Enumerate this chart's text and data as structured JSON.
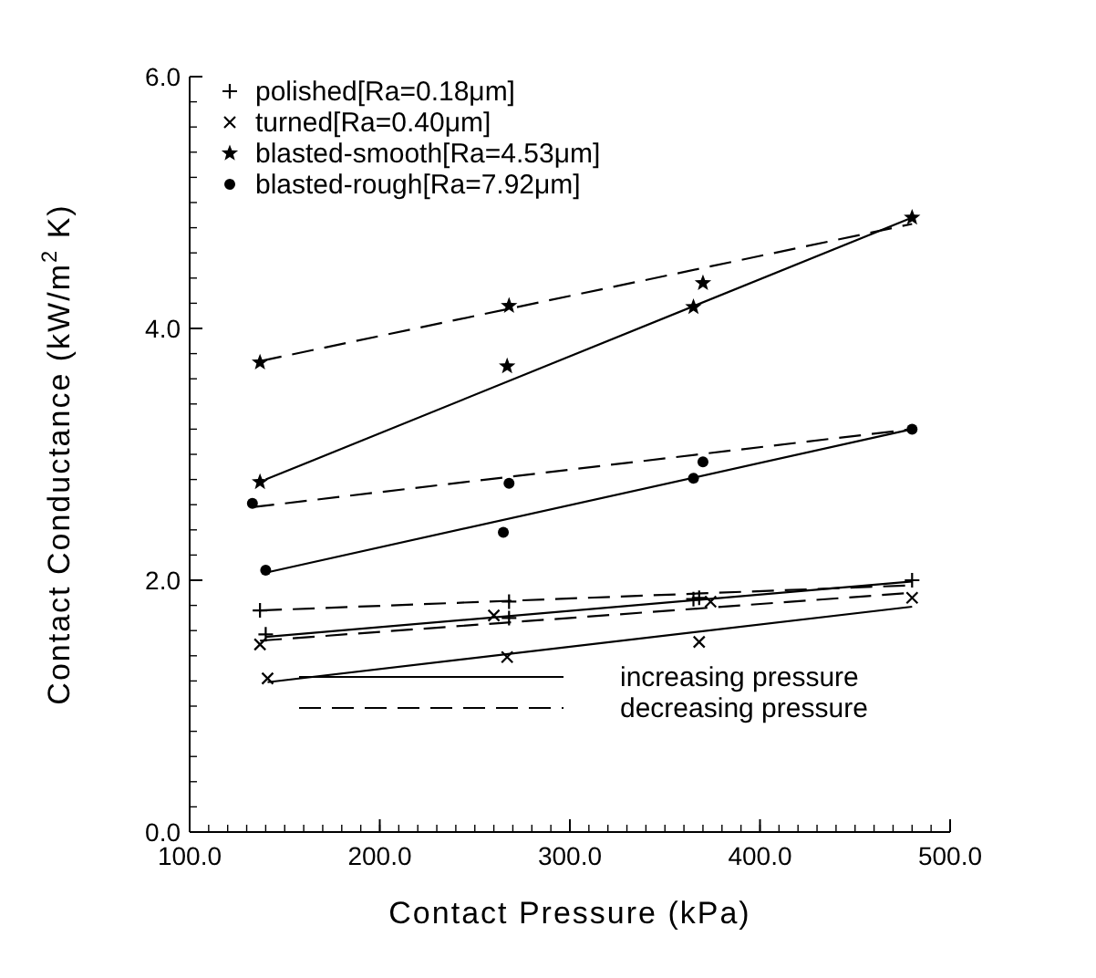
{
  "chart_data": {
    "type": "scatter",
    "xlabel": "Contact Pressure (kPa)",
    "ylabel": "Contact Conductance (kW/m$^{2}$ K)",
    "xlim": [
      100,
      500
    ],
    "ylim": [
      0,
      6
    ],
    "xticks": [
      {
        "value": 100,
        "label": "100.0"
      },
      {
        "value": 200,
        "label": "200.0"
      },
      {
        "value": 300,
        "label": "300.0"
      },
      {
        "value": 400,
        "label": "400.0"
      },
      {
        "value": 500,
        "label": "500.0"
      }
    ],
    "yticks": [
      {
        "value": 0,
        "label": "0.0"
      },
      {
        "value": 2,
        "label": "2.0"
      },
      {
        "value": 4,
        "label": "4.0"
      },
      {
        "value": 6,
        "label": "6.0"
      }
    ],
    "grid": false,
    "legend": "top left",
    "annotations": [
      "increasing pressure",
      "decreasing pressure"
    ],
    "series": [
      {
        "name": "polished[Ra=0.18μm]",
        "color": "#000000",
        "marker": "plus",
        "x": [
          137,
          268,
          368,
          480,
          140,
          268,
          365
        ],
        "values": [
          1.76,
          1.83,
          1.86,
          2.0,
          1.57,
          1.7,
          1.85
        ]
      },
      {
        "name": "turned[Ra=0.40μm]",
        "color": "#000000",
        "marker": "cross",
        "x": [
          141,
          267,
          368,
          480,
          137,
          260,
          374
        ],
        "values": [
          1.22,
          1.39,
          1.51,
          1.86,
          1.49,
          1.72,
          1.83
        ]
      },
      {
        "name": "blasted-smooth[Ra=4.53μm]",
        "color": "#000000",
        "marker": "star",
        "x": [
          137,
          267,
          365,
          480,
          137,
          268,
          370
        ],
        "values": [
          2.78,
          3.7,
          4.17,
          4.88,
          3.73,
          4.18,
          4.36
        ]
      },
      {
        "name": "blasted-rough[Ra=7.92μm]",
        "color": "#000000",
        "marker": "circle",
        "x": [
          140,
          265,
          365,
          480,
          133,
          268,
          370
        ],
        "values": [
          2.08,
          2.38,
          2.81,
          3.2,
          2.61,
          2.77,
          2.94
        ]
      },
      {
        "type": "line",
        "color": "#000000",
        "marker": "none",
        "line_style": "solid",
        "x": [
          140,
          480
        ],
        "values": [
          1.55,
          1.99
        ]
      },
      {
        "type": "line",
        "color": "#000000",
        "marker": "none",
        "line_style": "dashed",
        "x": [
          137,
          480
        ],
        "values": [
          1.76,
          1.96
        ]
      },
      {
        "type": "line",
        "color": "#000000",
        "marker": "none",
        "line_style": "solid",
        "x": [
          141,
          480
        ],
        "values": [
          1.19,
          1.79
        ]
      },
      {
        "type": "line",
        "color": "#000000",
        "marker": "none",
        "line_style": "dashed",
        "x": [
          137,
          480
        ],
        "values": [
          1.52,
          1.9
        ]
      },
      {
        "type": "line",
        "color": "#000000",
        "marker": "none",
        "line_style": "solid",
        "x": [
          140,
          480
        ],
        "values": [
          2.8,
          4.88
        ]
      },
      {
        "type": "line",
        "color": "#000000",
        "marker": "none",
        "line_style": "dashed",
        "x": [
          137,
          480
        ],
        "values": [
          3.74,
          4.83
        ]
      },
      {
        "type": "line",
        "color": "#000000",
        "marker": "none",
        "line_style": "solid",
        "x": [
          140,
          480
        ],
        "values": [
          2.06,
          3.2
        ]
      },
      {
        "type": "line",
        "color": "#000000",
        "marker": "none",
        "line_style": "dashed",
        "x": [
          133,
          480
        ],
        "values": [
          2.58,
          3.2
        ]
      }
    ]
  }
}
